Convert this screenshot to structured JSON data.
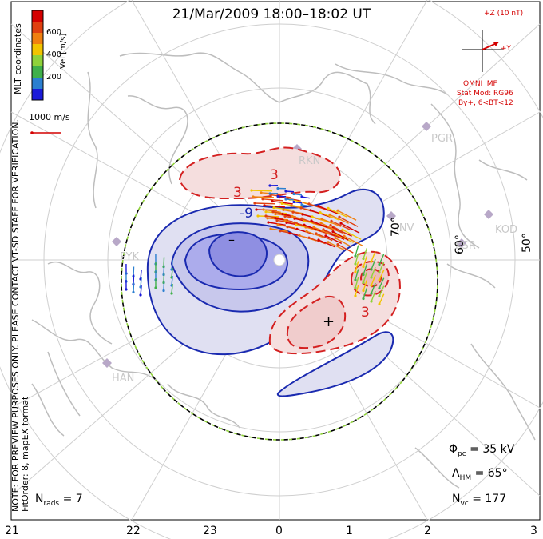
{
  "title": "21/Mar/2009  18:00–18:02  UT",
  "side_note": {
    "line1": "NOTE: FOR PREVIEW PURPOSES ONLY. PLEASE CONTACT VT-SD STAFF FOR VERIFICATION.",
    "line2": "FitOrder: 8, mapEX format"
  },
  "coordinates_label": "MLT coordinates",
  "colorbar": {
    "title": "Vel [m/s]",
    "ticks": [
      "600",
      "400",
      "200"
    ],
    "colors": [
      "#1a1ad8",
      "#2b7fd0",
      "#3fb04a",
      "#8fd23a",
      "#f2c400",
      "#f08010",
      "#e04010",
      "#d40000"
    ]
  },
  "velocity_reference": "1000 m/s",
  "imf": {
    "z_label": "+Z (10 nT)",
    "y_label": "+Y",
    "source": "OMNI IMF",
    "model": "Stat Mod: RG96",
    "condition": "By+, 6<BT<12"
  },
  "contour_labels": {
    "plus": "+",
    "minus": "–",
    "neg9": "-9",
    "pos3a": "3",
    "pos3b": "3",
    "pos3c": "3"
  },
  "latitude_labels": [
    "70°",
    "60°",
    "50°"
  ],
  "stations": [
    "RKN",
    "PGR",
    "INV",
    "KOD",
    "KSR",
    "PYK",
    "HAN"
  ],
  "stats": {
    "phi_pc_symbol": "Φ",
    "phi_pc_sub": "pc",
    "phi_pc_value": "= 35 kV",
    "lambda_symbol": "Λ",
    "lambda_sub": "HM",
    "lambda_value": "= 65°",
    "nvc_symbol": "N",
    "nvc_sub": "vc",
    "nvc_value": "= 177",
    "nrads_symbol": "N",
    "nrads_sub": "rads",
    "nrads_value": "= 7"
  },
  "mlt_ticks": [
    "21",
    "22",
    "23",
    "0",
    "1",
    "2",
    "3"
  ]
}
